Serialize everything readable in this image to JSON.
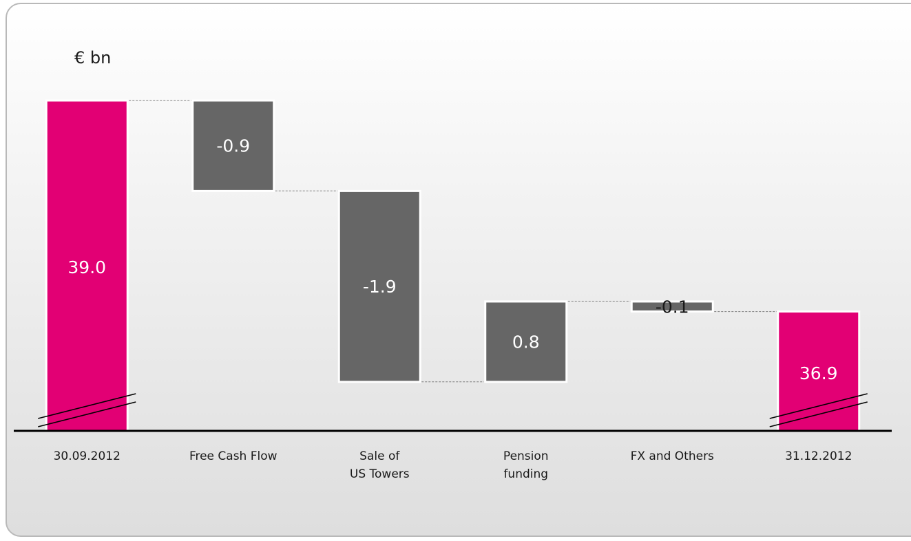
{
  "unit_label": "€ bn",
  "colors": {
    "total": "#e20074",
    "delta": "#666666",
    "axis": "#000000"
  },
  "chart_data": {
    "type": "bar",
    "subtype": "waterfall",
    "title": "",
    "ylabel": "€ bn",
    "axis_break": true,
    "categories": [
      [
        "30.09.2012"
      ],
      [
        "Free Cash Flow"
      ],
      [
        "Sale of",
        "US Towers"
      ],
      [
        "Pension",
        "funding"
      ],
      [
        "FX and Others"
      ],
      [
        "31.12.2012"
      ]
    ],
    "values": [
      39.0,
      -0.9,
      -1.9,
      0.8,
      -0.1,
      36.9
    ],
    "labels": [
      "39.0",
      "-0.9",
      "-1.9",
      "0.8",
      "-0.1",
      "36.9"
    ],
    "kinds": [
      "total",
      "delta",
      "delta",
      "delta",
      "delta",
      "total"
    ],
    "ylim": [
      35.0,
      39.0
    ]
  }
}
